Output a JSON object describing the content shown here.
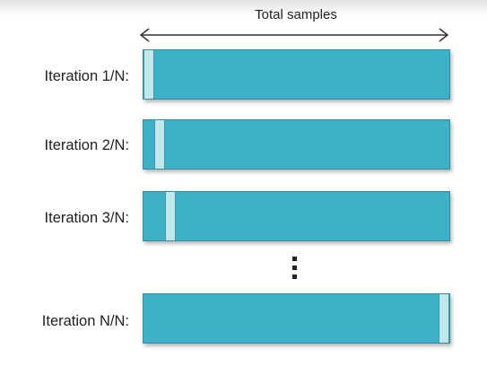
{
  "header": {
    "axis_label": "Total samples"
  },
  "colors": {
    "bar": "#3db1c7",
    "bar_border": "#2f8da0",
    "holdout": "#c3e5ec"
  },
  "rows": [
    {
      "label": "Iteration 1/N:",
      "holdout_fraction_start": 0.0
    },
    {
      "label": "Iteration 2/N:",
      "holdout_fraction_start": 0.035
    },
    {
      "label": "Iteration 3/N:",
      "holdout_fraction_start": 0.07
    },
    {
      "label": "Iteration N/N:",
      "holdout_fraction_start": 0.965
    }
  ],
  "ellipsis": "⋮"
}
